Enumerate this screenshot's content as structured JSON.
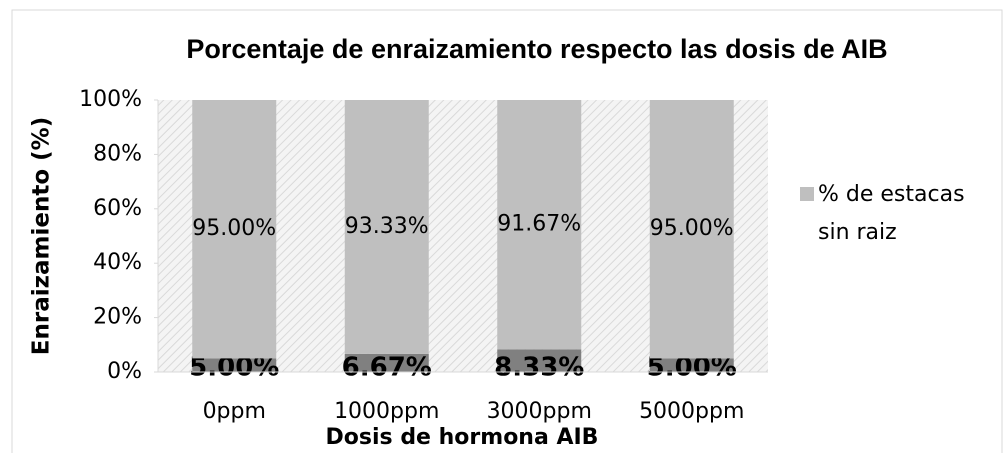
{
  "chart_data": {
    "type": "stacked_bar",
    "title": "Porcentaje de enraizamiento respecto las dosis de AIB",
    "x_label": "Dosis de hormona AIB",
    "y_label": "Enraizamiento (%)",
    "categories": [
      "0ppm",
      "1000ppm",
      "3000ppm",
      "5000ppm"
    ],
    "series": [
      {
        "color": "#808080",
        "values": [
          5,
          6.67,
          8.33,
          5
        ],
        "value_labels": [
          "5.00%",
          "6.67%",
          "8.33%",
          "5.00%"
        ]
      },
      {
        "name": "% de estacas sin raiz",
        "color": "#bfbfbf",
        "values": [
          95,
          93.33,
          91.67,
          95
        ],
        "value_labels": [
          "95.00%",
          "93.33%",
          "91.67%",
          "95.00%"
        ]
      }
    ],
    "ylim": [
      0,
      100
    ],
    "yticks": [
      {
        "value": 0,
        "label": "0%"
      },
      {
        "value": 20,
        "label": "20%"
      },
      {
        "value": 40,
        "label": "40%"
      },
      {
        "value": 60,
        "label": "60%"
      },
      {
        "value": 80,
        "label": "80%"
      },
      {
        "value": 100,
        "label": "100%"
      }
    ],
    "legend": "right"
  }
}
